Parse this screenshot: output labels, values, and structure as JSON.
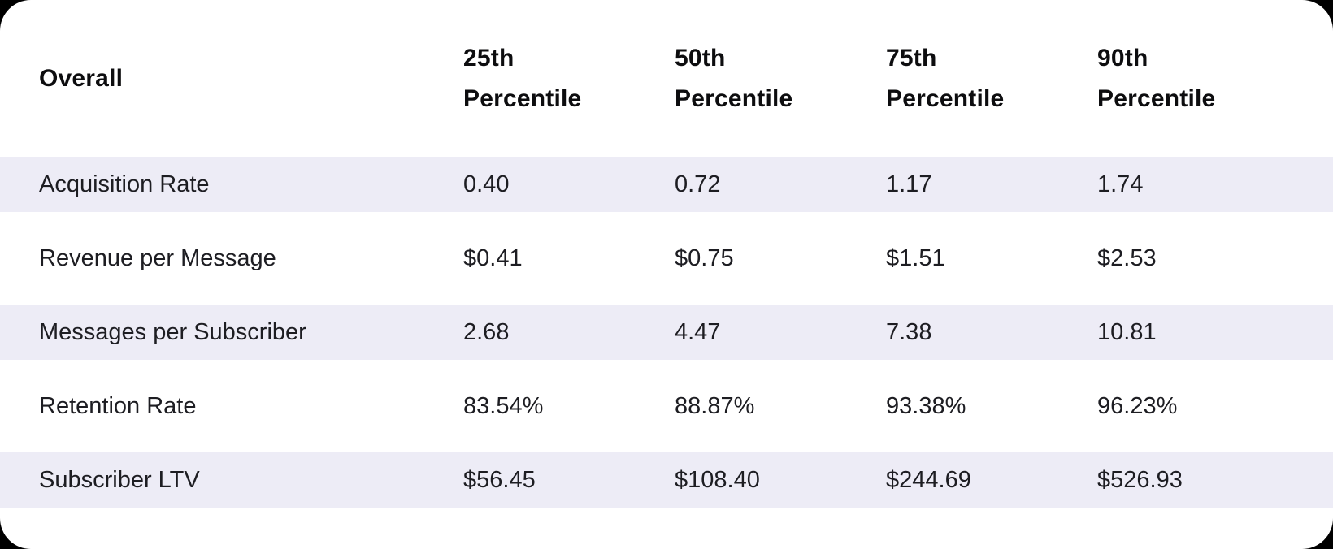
{
  "colors": {
    "page_bg": "#000000",
    "card_bg": "#ffffff",
    "stripe_bg": "#edecf6",
    "header_text": "#0d0d0f",
    "body_text": "#1d1d22"
  },
  "table": {
    "corner_label": "Overall",
    "columns": [
      "25th Percentile",
      "50th Percentile",
      "75th Percentile",
      "90th Percentile"
    ],
    "rows": [
      {
        "label": "Acquisition Rate",
        "values": [
          "0.40",
          "0.72",
          "1.17",
          "1.74"
        ]
      },
      {
        "label": "Revenue per Message",
        "values": [
          "$0.41",
          "$0.75",
          "$1.51",
          "$2.53"
        ]
      },
      {
        "label": "Messages per Subscriber",
        "values": [
          "2.68",
          "4.47",
          "7.38",
          "10.81"
        ]
      },
      {
        "label": "Retention Rate",
        "values": [
          "83.54%",
          "88.87%",
          "93.38%",
          "96.23%"
        ]
      },
      {
        "label": "Subscriber LTV",
        "values": [
          "$56.45",
          "$108.40",
          "$244.69",
          "$526.93"
        ]
      }
    ]
  },
  "chart_data": {
    "type": "table",
    "title": "Overall percentile statistics",
    "columns": [
      "Overall",
      "25th Percentile",
      "50th Percentile",
      "75th Percentile",
      "90th Percentile"
    ],
    "rows": [
      [
        "Acquisition Rate",
        "0.40",
        "0.72",
        "1.17",
        "1.74"
      ],
      [
        "Revenue per Message",
        "$0.41",
        "$0.75",
        "$1.51",
        "$2.53"
      ],
      [
        "Messages per Subscriber",
        "2.68",
        "4.47",
        "7.38",
        "10.81"
      ],
      [
        "Retention Rate",
        "83.54%",
        "88.87%",
        "93.38%",
        "96.23%"
      ],
      [
        "Subscriber LTV",
        "$56.45",
        "$108.40",
        "$244.69",
        "$526.93"
      ]
    ]
  }
}
